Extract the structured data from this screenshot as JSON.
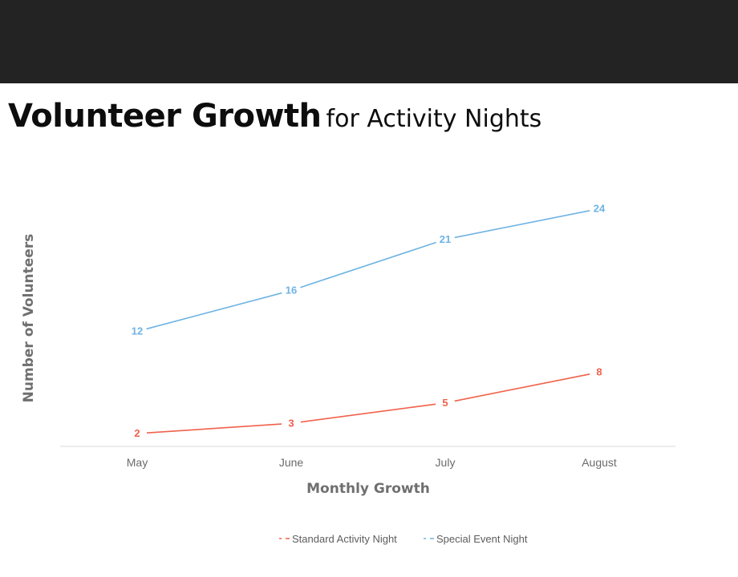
{
  "header": {
    "title_bold": "Volunteer Growth",
    "title_light": "for Activity Nights"
  },
  "chart_data": {
    "type": "line",
    "categories": [
      "May",
      "June",
      "July",
      "August"
    ],
    "series": [
      {
        "name": "Standard Activity Night",
        "values": [
          2,
          3,
          5,
          8
        ],
        "color": "#f0614b"
      },
      {
        "name": "Special Event Night",
        "values": [
          12,
          16,
          21,
          24
        ],
        "color": "#6fb3e3"
      }
    ],
    "xlabel": "Monthly Growth",
    "ylabel": "Number of Volunteers",
    "ylim": [
      0,
      26
    ],
    "grid": false,
    "legend": "bottom",
    "data_labels": true,
    "axis_color": "#d9d9d9"
  }
}
